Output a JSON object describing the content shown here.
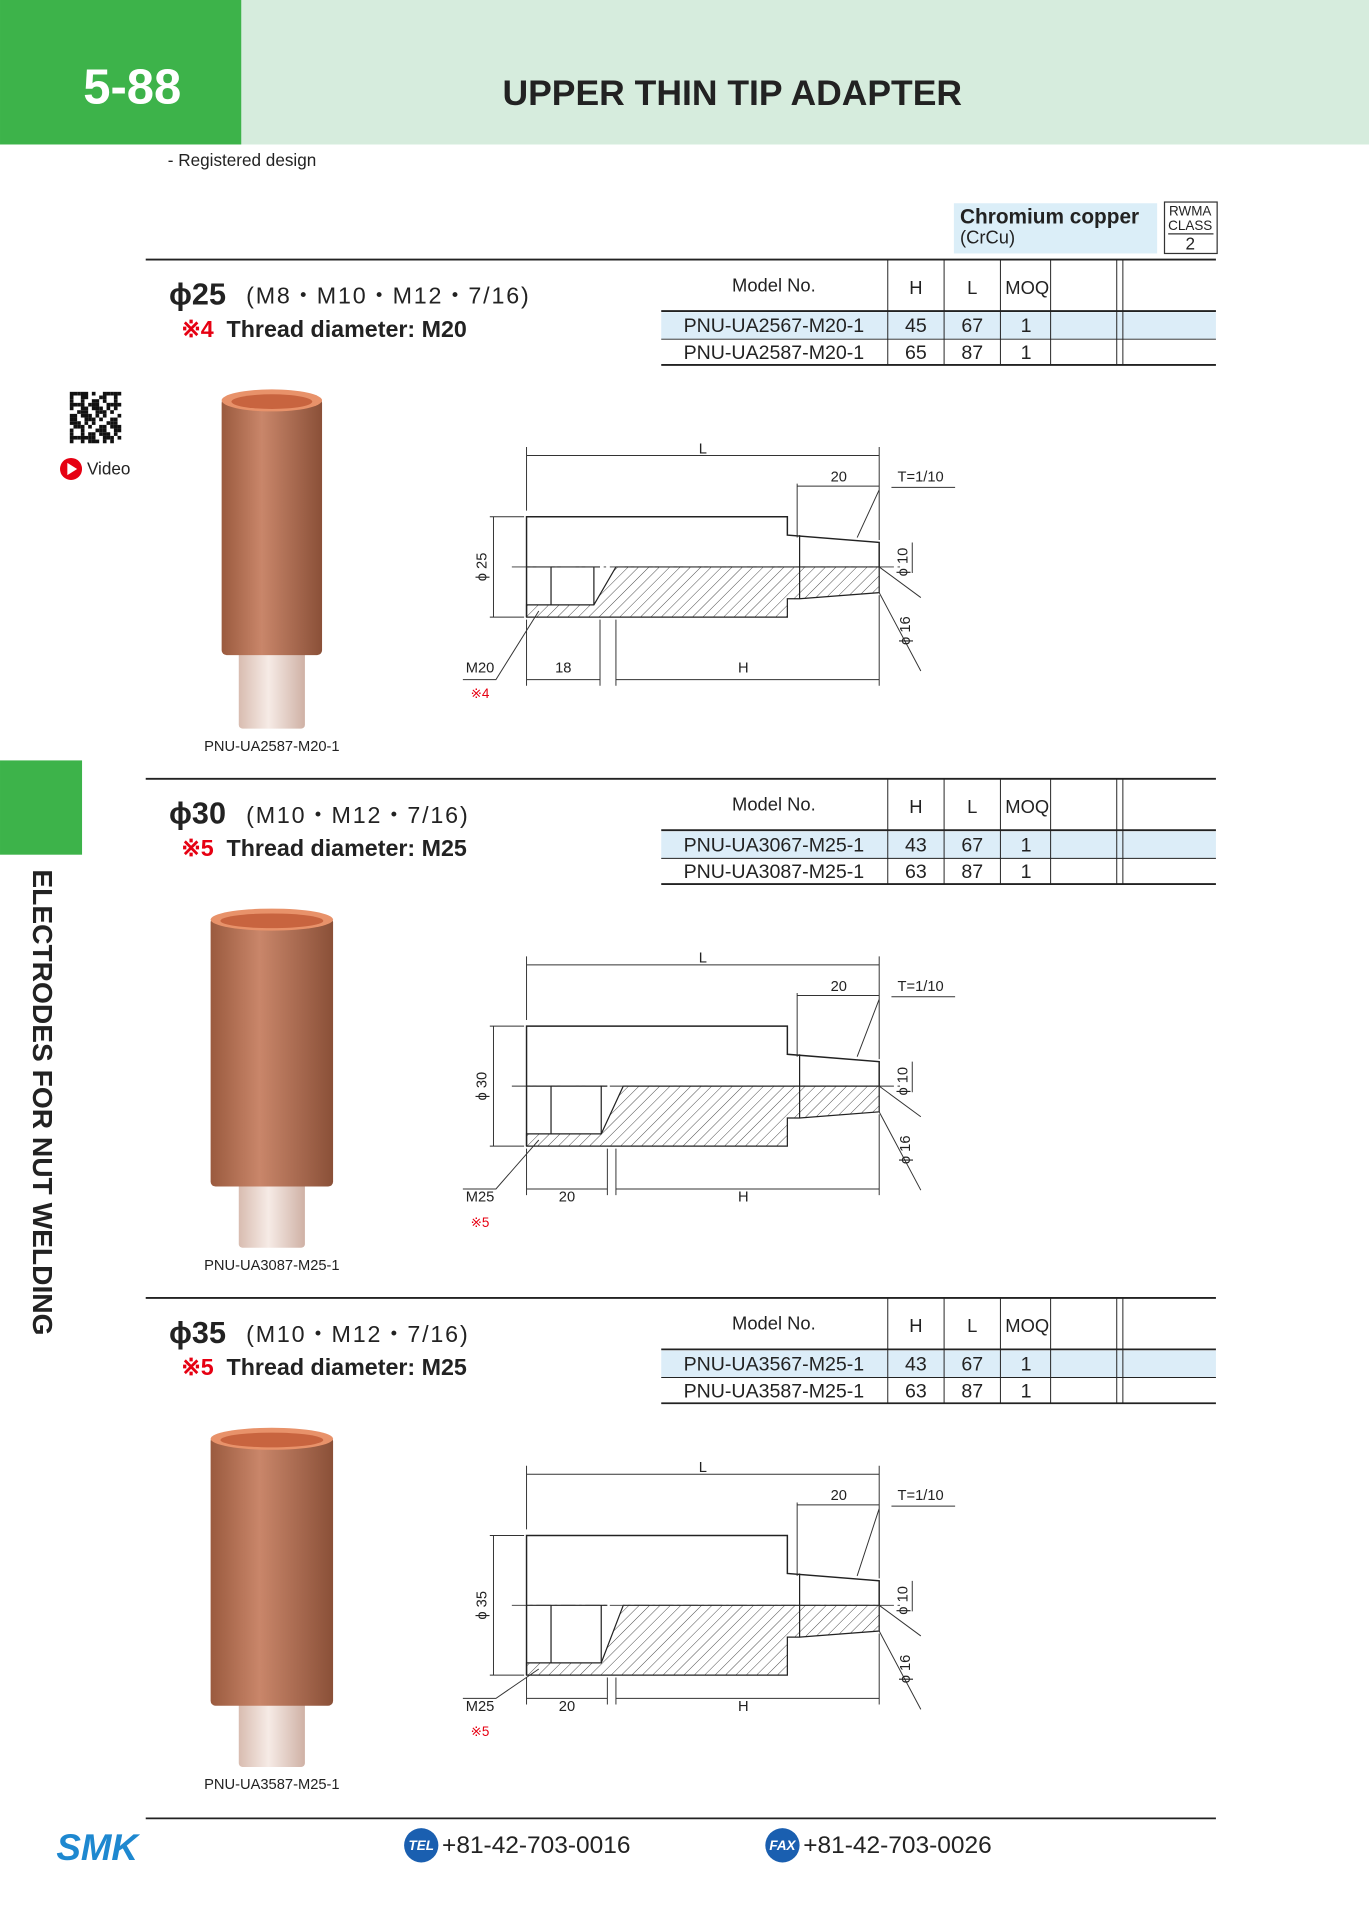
{
  "header": {
    "page_number": "5-88",
    "title": "UPPER THIN TIP ADAPTER",
    "subtitle": "- Registered design"
  },
  "material": {
    "name": "Chromium copper",
    "formula": "(CrCu)",
    "rwma": "RWMA",
    "class_label": "CLASS",
    "class": "2"
  },
  "side_tab": "ELECTRODES FOR NUT WELDING",
  "video": "Video",
  "table_columns": [
    "Model No.",
    "H",
    "L",
    "MOQ"
  ],
  "sections": [
    {
      "diameter": "ϕ25",
      "threads": "(M8・M10・M12・7/16)",
      "note_mark": "※4",
      "note": "Thread diameter: M20",
      "rows": [
        [
          "PNU-UA2567-M20-1",
          45,
          67,
          1
        ],
        [
          "PNU-UA2587-M20-1",
          65,
          87,
          1
        ]
      ],
      "photo_label": "PNU-UA2587-M20-1",
      "drawing": {
        "length": "L",
        "tip_length": "20",
        "taper": "T=1/10",
        "body_dia": "ϕ 25",
        "tip_dia": "ϕ 10",
        "base_dia": "ϕ 16",
        "thread": "M20",
        "thread_mark": "※4",
        "depth": "18",
        "height": "H"
      }
    },
    {
      "diameter": "ϕ30",
      "threads": "(M10・M12・7/16)",
      "note_mark": "※5",
      "note": "Thread diameter: M25",
      "rows": [
        [
          "PNU-UA3067-M25-1",
          43,
          67,
          1
        ],
        [
          "PNU-UA3087-M25-1",
          63,
          87,
          1
        ]
      ],
      "photo_label": "PNU-UA3087-M25-1",
      "drawing": {
        "length": "L",
        "tip_length": "20",
        "taper": "T=1/10",
        "body_dia": "ϕ 30",
        "tip_dia": "ϕ 10",
        "base_dia": "ϕ 16",
        "thread": "M25",
        "thread_mark": "※5",
        "depth": "20",
        "height": "H"
      }
    },
    {
      "diameter": "ϕ35",
      "threads": "(M10・M12・7/16)",
      "note_mark": "※5",
      "note": "Thread diameter: M25",
      "rows": [
        [
          "PNU-UA3567-M25-1",
          43,
          67,
          1
        ],
        [
          "PNU-UA3587-M25-1",
          63,
          87,
          1
        ]
      ],
      "photo_label": "PNU-UA3587-M25-1",
      "drawing": {
        "length": "L",
        "tip_length": "20",
        "taper": "T=1/10",
        "body_dia": "ϕ 35",
        "tip_dia": "ϕ 10",
        "base_dia": "ϕ 16",
        "thread": "M25",
        "thread_mark": "※5",
        "depth": "20",
        "height": "H"
      }
    }
  ],
  "footer": {
    "logo": "SMK",
    "tel_badge": "TEL",
    "tel": "+81-42-703-0016",
    "fax_badge": "FAX",
    "fax": "+81-42-703-0026"
  }
}
